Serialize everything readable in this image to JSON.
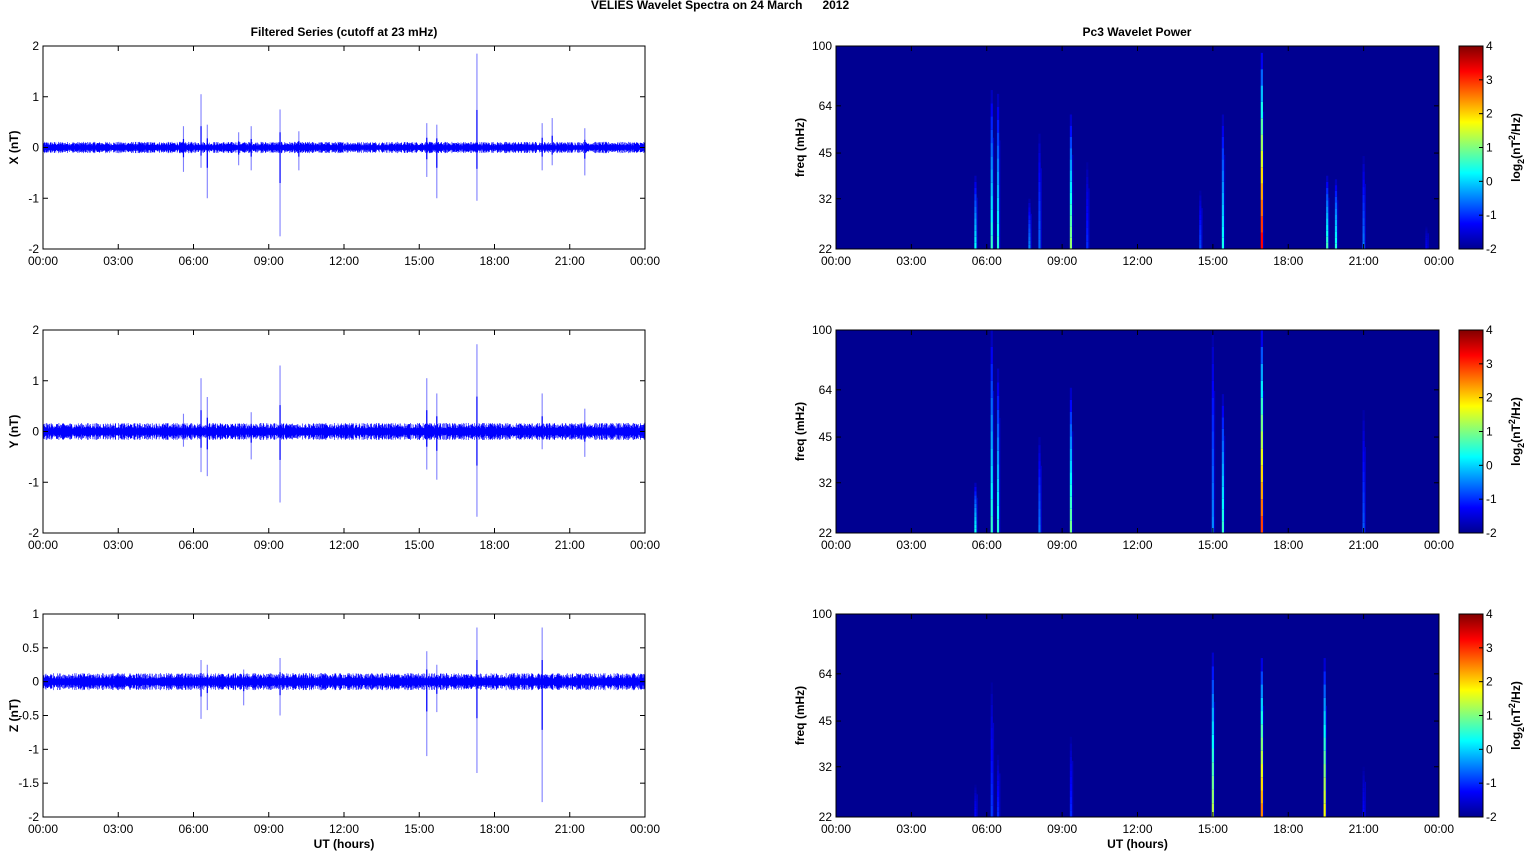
{
  "figure": {
    "title": "VELIES Wavelet Spectra on 24 March      2012",
    "left_title": "Filtered Series (cutoff at 23 mHz)",
    "right_title": "Pc3 Wavelet Power",
    "xlabel": "UT (hours)",
    "colorbar_label_parts": [
      "log",
      "2",
      "(nT",
      "2",
      "/Hz)"
    ]
  },
  "chart_data": [
    {
      "type": "line",
      "panel": "X",
      "ylabel": "X (nT)",
      "ylim": [
        -2,
        2
      ],
      "yticks": [
        "2",
        "1",
        "0",
        "-1",
        "-2"
      ],
      "yticks_values": [
        2,
        1,
        0,
        -1,
        -2
      ],
      "xlim_hours": [
        0,
        24
      ],
      "xticks": [
        "00:00",
        "03:00",
        "06:00",
        "09:00",
        "12:00",
        "15:00",
        "18:00",
        "21:00",
        "00:00"
      ],
      "noise_amplitude": 0.08,
      "color": "#0000ff",
      "spikes": [
        {
          "t": 5.6,
          "max": 0.42,
          "min": -0.48
        },
        {
          "t": 6.3,
          "max": 1.05,
          "min": -0.4
        },
        {
          "t": 6.55,
          "max": 0.45,
          "min": -1.0
        },
        {
          "t": 7.8,
          "max": 0.3,
          "min": -0.35
        },
        {
          "t": 8.3,
          "max": 0.42,
          "min": -0.45
        },
        {
          "t": 9.45,
          "max": 0.75,
          "min": -1.75
        },
        {
          "t": 10.2,
          "max": 0.32,
          "min": -0.45
        },
        {
          "t": 15.3,
          "max": 0.48,
          "min": -0.58
        },
        {
          "t": 15.7,
          "max": 0.45,
          "min": -1.0
        },
        {
          "t": 17.3,
          "max": 1.85,
          "min": -1.05
        },
        {
          "t": 19.9,
          "max": 0.48,
          "min": -0.45
        },
        {
          "t": 20.3,
          "max": 0.58,
          "min": -0.35
        },
        {
          "t": 21.6,
          "max": 0.38,
          "min": -0.55
        }
      ]
    },
    {
      "type": "line",
      "panel": "Y",
      "ylabel": "Y (nT)",
      "ylim": [
        -2,
        2
      ],
      "yticks": [
        "2",
        "1",
        "0",
        "-1",
        "-2"
      ],
      "yticks_values": [
        2,
        1,
        0,
        -1,
        -2
      ],
      "xlim_hours": [
        0,
        24
      ],
      "xticks": [
        "00:00",
        "03:00",
        "06:00",
        "09:00",
        "12:00",
        "15:00",
        "18:00",
        "21:00",
        "00:00"
      ],
      "noise_amplitude": 0.12,
      "color": "#0000ff",
      "spikes": [
        {
          "t": 5.6,
          "max": 0.35,
          "min": -0.3
        },
        {
          "t": 6.3,
          "max": 1.05,
          "min": -0.8
        },
        {
          "t": 6.55,
          "max": 0.68,
          "min": -0.88
        },
        {
          "t": 8.3,
          "max": 0.38,
          "min": -0.55
        },
        {
          "t": 9.45,
          "max": 1.3,
          "min": -1.4
        },
        {
          "t": 15.3,
          "max": 1.05,
          "min": -0.75
        },
        {
          "t": 15.7,
          "max": 0.75,
          "min": -0.95
        },
        {
          "t": 17.3,
          "max": 1.72,
          "min": -1.68
        },
        {
          "t": 19.9,
          "max": 0.75,
          "min": -0.35
        },
        {
          "t": 21.6,
          "max": 0.45,
          "min": -0.5
        }
      ]
    },
    {
      "type": "line",
      "panel": "Z",
      "ylabel": "Z (nT)",
      "ylim": [
        -2,
        1
      ],
      "yticks": [
        "1",
        "0.5",
        "0",
        "-0.5",
        "-1",
        "-1.5",
        "-2"
      ],
      "yticks_values": [
        1,
        0.5,
        0,
        -0.5,
        -1,
        -1.5,
        -2
      ],
      "xlim_hours": [
        0,
        24
      ],
      "xticks": [
        "00:00",
        "03:00",
        "06:00",
        "09:00",
        "12:00",
        "15:00",
        "18:00",
        "21:00",
        "00:00"
      ],
      "xlabel": "UT (hours)",
      "noise_amplitude": 0.09,
      "color": "#0000ff",
      "spikes": [
        {
          "t": 6.3,
          "max": 0.32,
          "min": -0.55
        },
        {
          "t": 6.55,
          "max": 0.25,
          "min": -0.42
        },
        {
          "t": 8.0,
          "max": 0.18,
          "min": -0.35
        },
        {
          "t": 9.45,
          "max": 0.35,
          "min": -0.5
        },
        {
          "t": 15.3,
          "max": 0.45,
          "min": -1.1
        },
        {
          "t": 15.7,
          "max": 0.25,
          "min": -0.45
        },
        {
          "t": 17.3,
          "max": 0.8,
          "min": -1.35
        },
        {
          "t": 19.9,
          "max": 0.8,
          "min": -1.78
        }
      ]
    },
    {
      "type": "heatmap",
      "panel": "X",
      "ylabel": "freq (mHz)",
      "ylim": [
        22,
        100
      ],
      "yscale": "log",
      "yticks": [
        "100",
        "64",
        "45",
        "32",
        "22"
      ],
      "yticks_values": [
        100,
        64,
        45,
        32,
        22
      ],
      "xlim_hours": [
        0,
        24
      ],
      "xticks": [
        "00:00",
        "03:00",
        "06:00",
        "09:00",
        "12:00",
        "15:00",
        "18:00",
        "21:00",
        "00:00"
      ],
      "clim": [
        -2,
        4
      ],
      "colorbar_ticks": [
        "4",
        "3",
        "2",
        "1",
        "0",
        "-1",
        "-2"
      ],
      "colorbar_ticks_values": [
        4,
        3,
        2,
        1,
        0,
        -1,
        -2
      ],
      "background_value": -1.9,
      "streaks": [
        {
          "t": 5.55,
          "fmax": 38,
          "peak": 0.3
        },
        {
          "t": 6.2,
          "fmax": 72,
          "peak": 0.6
        },
        {
          "t": 6.45,
          "fmax": 70,
          "peak": 0.5
        },
        {
          "t": 7.7,
          "fmax": 32,
          "peak": -0.4
        },
        {
          "t": 8.1,
          "fmax": 52,
          "peak": -0.6
        },
        {
          "t": 9.35,
          "fmax": 60,
          "peak": 1.2
        },
        {
          "t": 10.0,
          "fmax": 42,
          "peak": -1.0
        },
        {
          "t": 14.5,
          "fmax": 34,
          "peak": -0.8
        },
        {
          "t": 15.4,
          "fmax": 60,
          "peak": 0.4
        },
        {
          "t": 16.95,
          "fmax": 95,
          "peak": 3.4
        },
        {
          "t": 19.55,
          "fmax": 38,
          "peak": 0.7
        },
        {
          "t": 19.9,
          "fmax": 37,
          "peak": 0.5
        },
        {
          "t": 21.0,
          "fmax": 44,
          "peak": -0.5
        },
        {
          "t": 23.5,
          "fmax": 26,
          "peak": -1.3
        }
      ]
    },
    {
      "type": "heatmap",
      "panel": "Y",
      "ylabel": "freq (mHz)",
      "ylim": [
        22,
        100
      ],
      "yscale": "log",
      "yticks": [
        "100",
        "64",
        "45",
        "32",
        "22"
      ],
      "yticks_values": [
        100,
        64,
        45,
        32,
        22
      ],
      "xlim_hours": [
        0,
        24
      ],
      "xticks": [
        "00:00",
        "03:00",
        "06:00",
        "09:00",
        "12:00",
        "15:00",
        "18:00",
        "21:00",
        "00:00"
      ],
      "clim": [
        -2,
        4
      ],
      "colorbar_ticks": [
        "4",
        "3",
        "2",
        "1",
        "0",
        "-1",
        "-2"
      ],
      "colorbar_ticks_values": [
        4,
        3,
        2,
        1,
        0,
        -1,
        -2
      ],
      "background_value": -1.9,
      "streaks": [
        {
          "t": 5.55,
          "fmax": 32,
          "peak": 0.4
        },
        {
          "t": 6.2,
          "fmax": 100,
          "peak": 0.6
        },
        {
          "t": 6.45,
          "fmax": 75,
          "peak": 0.5
        },
        {
          "t": 8.1,
          "fmax": 45,
          "peak": -0.5
        },
        {
          "t": 9.35,
          "fmax": 65,
          "peak": 1.0
        },
        {
          "t": 15.0,
          "fmax": 100,
          "peak": -0.4
        },
        {
          "t": 15.4,
          "fmax": 62,
          "peak": 0.6
        },
        {
          "t": 16.95,
          "fmax": 100,
          "peak": 3.0
        },
        {
          "t": 21.0,
          "fmax": 55,
          "peak": -0.7
        }
      ]
    },
    {
      "type": "heatmap",
      "panel": "Z",
      "ylabel": "freq (mHz)",
      "ylim": [
        22,
        100
      ],
      "yscale": "log",
      "yticks": [
        "100",
        "64",
        "45",
        "32",
        "22"
      ],
      "yticks_values": [
        100,
        64,
        45,
        32,
        22
      ],
      "xlim_hours": [
        0,
        24
      ],
      "xticks": [
        "00:00",
        "03:00",
        "06:00",
        "09:00",
        "12:00",
        "15:00",
        "18:00",
        "21:00",
        "00:00"
      ],
      "xlabel": "UT (hours)",
      "clim": [
        -2,
        4
      ],
      "colorbar_ticks": [
        "4",
        "3",
        "2",
        "1",
        "0",
        "-1",
        "-2"
      ],
      "colorbar_ticks_values": [
        4,
        3,
        2,
        1,
        0,
        -1,
        -2
      ],
      "background_value": -1.9,
      "streaks": [
        {
          "t": 5.55,
          "fmax": 28,
          "peak": -1.2
        },
        {
          "t": 6.2,
          "fmax": 60,
          "peak": -0.9
        },
        {
          "t": 6.45,
          "fmax": 35,
          "peak": -1.0
        },
        {
          "t": 9.35,
          "fmax": 40,
          "peak": -1.0
        },
        {
          "t": 15.0,
          "fmax": 75,
          "peak": 1.4
        },
        {
          "t": 16.95,
          "fmax": 72,
          "peak": 2.6
        },
        {
          "t": 19.45,
          "fmax": 72,
          "peak": 1.8
        },
        {
          "t": 21.0,
          "fmax": 32,
          "peak": -1.2
        }
      ]
    }
  ]
}
